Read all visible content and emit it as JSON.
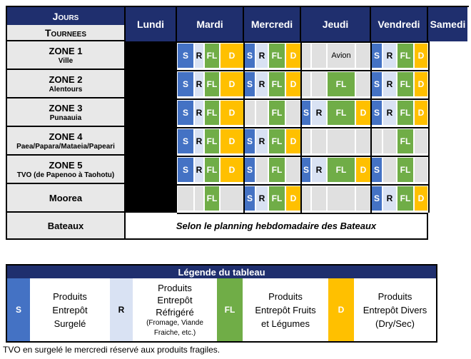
{
  "header": {
    "jours": "Jours",
    "tournees": "Tournees",
    "days": [
      "Lundi",
      "Mardi",
      "Mercredi",
      "Jeudi",
      "Vendredi",
      "Samedi"
    ]
  },
  "zones": [
    {
      "name": "ZONE 1",
      "sub": "Ville"
    },
    {
      "name": "ZONE 2",
      "sub": "Alentours"
    },
    {
      "name": "ZONE 3",
      "sub": "Punaauia"
    },
    {
      "name": "ZONE 4",
      "sub": "Paea/Papara/Mataeia/Papeari"
    },
    {
      "name": "ZONE 5",
      "sub": "TVO (de Papenoo à Taohotu)"
    },
    {
      "name": "Moorea",
      "sub": ""
    }
  ],
  "schedule": [
    [
      "S",
      "R",
      "FL",
      "D",
      "S",
      "R",
      "FL",
      "D",
      "",
      "",
      "Avion",
      "",
      "S",
      "R",
      "FL",
      "D"
    ],
    [
      "S",
      "R",
      "FL",
      "D",
      "S",
      "R",
      "FL",
      "D",
      "",
      "",
      "FL",
      "",
      "S",
      "R",
      "FL",
      "D"
    ],
    [
      "S",
      "R",
      "FL",
      "D",
      "",
      "",
      "FL",
      "",
      "S",
      "R",
      "FL",
      "D",
      "S",
      "R",
      "FL",
      "D"
    ],
    [
      "S",
      "R",
      "FL",
      "D",
      "S",
      "R",
      "FL",
      "D",
      "",
      "",
      "",
      "",
      "",
      "",
      "FL",
      ""
    ],
    [
      "S",
      "R",
      "FL",
      "D",
      "S",
      "",
      "FL",
      "",
      "S",
      "R",
      "FL",
      "D",
      "S",
      "",
      "FL",
      ""
    ],
    [
      "",
      "",
      "FL",
      "",
      "S",
      "R",
      "FL",
      "D",
      "",
      "",
      "",
      "",
      "S",
      "R",
      "FL",
      "D"
    ]
  ],
  "bateaux": {
    "label": "Bateaux",
    "text": "Selon le planning hebdomadaire des Bateaux"
  },
  "legend": {
    "title": "Légende du tableau",
    "items": [
      {
        "code": "S",
        "lines": [
          "Produits",
          "Entrepôt",
          "Surgelé"
        ]
      },
      {
        "code": "R",
        "lines": [
          "Produits",
          "Entrepôt",
          "Réfrigéré",
          "(Fromage, Viande",
          "Fraiche, etc.)"
        ]
      },
      {
        "code": "FL",
        "lines": [
          "Produits",
          "Entrepôt Fruits",
          "et Légumes"
        ]
      },
      {
        "code": "D",
        "lines": [
          "Produits",
          "Entrepôt Divers",
          "(Dry/Sec)"
        ]
      }
    ]
  },
  "note": "TVO en surgelé le mercredi réservé aux produits fragiles.",
  "colors": {
    "header": "#1f2f6e",
    "S": "#4472c4",
    "R": "#d9e2f3",
    "FL": "#70ad47",
    "D": "#ffc000"
  }
}
